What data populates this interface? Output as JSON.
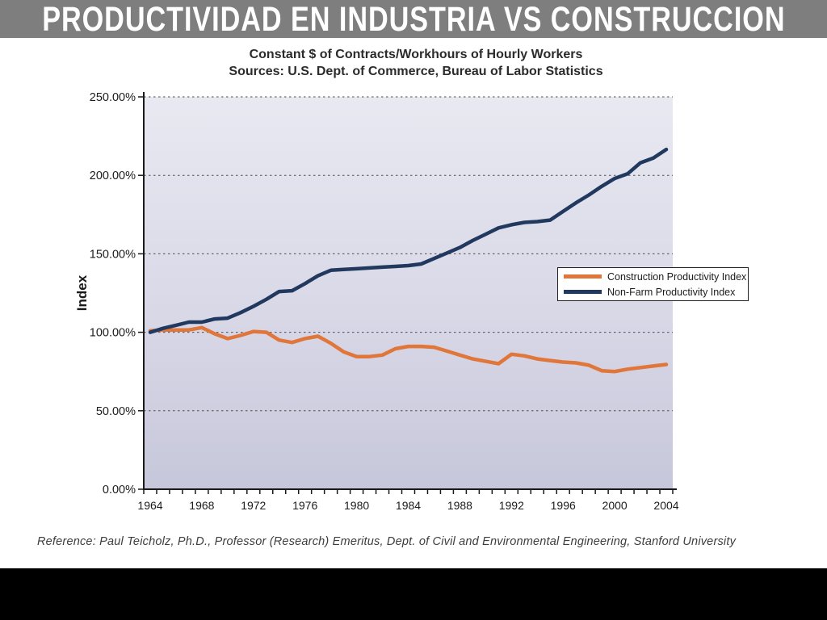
{
  "slide": {
    "title": "PRODUCTIVIDAD EN INDUSTRIA VS CONSTRUCCION",
    "title_bar_color": "#7e7e7e",
    "footer_bar_color": "#000000"
  },
  "chart": {
    "title_line1": "Constant $ of Contracts/Workhours of Hourly Workers",
    "title_line2": "Sources: U.S. Dept. of Commerce, Bureau of Labor Statistics",
    "y_axis_title": "Index",
    "reference": "Reference: Paul Teicholz, Ph.D., Professor (Research) Emeritus, Dept. of Civil and Environmental Engineering, Stanford University"
  },
  "chart_data": {
    "type": "line",
    "title": "Constant $ of Contracts/Workhours of Hourly Workers",
    "subtitle": "Sources: U.S. Dept. of Commerce, Bureau of Labor Statistics",
    "xlabel": "",
    "ylabel": "Index",
    "ylim": [
      0,
      250
    ],
    "grid": "dashed-horizontal",
    "legend_position": "middle-right",
    "plot_bg_top": "#e9e9f2",
    "plot_bg_bottom": "#c7c7db",
    "x": [
      1964,
      1965,
      1966,
      1967,
      1968,
      1969,
      1970,
      1971,
      1972,
      1973,
      1974,
      1975,
      1976,
      1977,
      1978,
      1979,
      1980,
      1981,
      1982,
      1983,
      1984,
      1985,
      1986,
      1987,
      1988,
      1989,
      1990,
      1991,
      1992,
      1993,
      1994,
      1995,
      1996,
      1997,
      1998,
      1999,
      2000,
      2001,
      2002,
      2003,
      2004
    ],
    "x_tick_labels": [
      "1964",
      "1968",
      "1972",
      "1976",
      "1980",
      "1984",
      "1988",
      "1992",
      "1996",
      "2000",
      "2004"
    ],
    "y_ticks": [
      {
        "value": 0,
        "label": "0.00%"
      },
      {
        "value": 50,
        "label": "50.00%"
      },
      {
        "value": 100,
        "label": "100.00%"
      },
      {
        "value": 150,
        "label": "150.00%"
      },
      {
        "value": 200,
        "label": "200.00%"
      },
      {
        "value": 250,
        "label": "250.00%"
      }
    ],
    "series": [
      {
        "name": "Construction Productivity Index",
        "color": "#e0763a",
        "values": [
          101,
          101.5,
          101.5,
          101.5,
          103,
          99,
          96,
          98,
          100.5,
          100,
          95,
          93.5,
          96,
          97.5,
          93,
          87.5,
          84.5,
          84.5,
          85.5,
          89.5,
          91,
          91,
          90.5,
          88,
          85.5,
          83,
          81.5,
          80,
          86,
          85,
          83,
          82,
          81,
          80.5,
          79,
          75.5,
          75,
          76.5,
          77.5,
          78.5,
          79.5
        ]
      },
      {
        "name": "Non-Farm Productivity Index",
        "color": "#22395f",
        "values": [
          100,
          102.5,
          104.5,
          106.5,
          106.5,
          108.5,
          109,
          112.5,
          116.5,
          121,
          126,
          126.5,
          131,
          136,
          139.5,
          140,
          140.5,
          141,
          141.5,
          142,
          142.5,
          143.5,
          147,
          150.5,
          154,
          158.5,
          162.5,
          166.5,
          168.5,
          170,
          170.5,
          171.5,
          177,
          182.5,
          187.5,
          193,
          198,
          201,
          208,
          211,
          216.5
        ]
      }
    ]
  }
}
